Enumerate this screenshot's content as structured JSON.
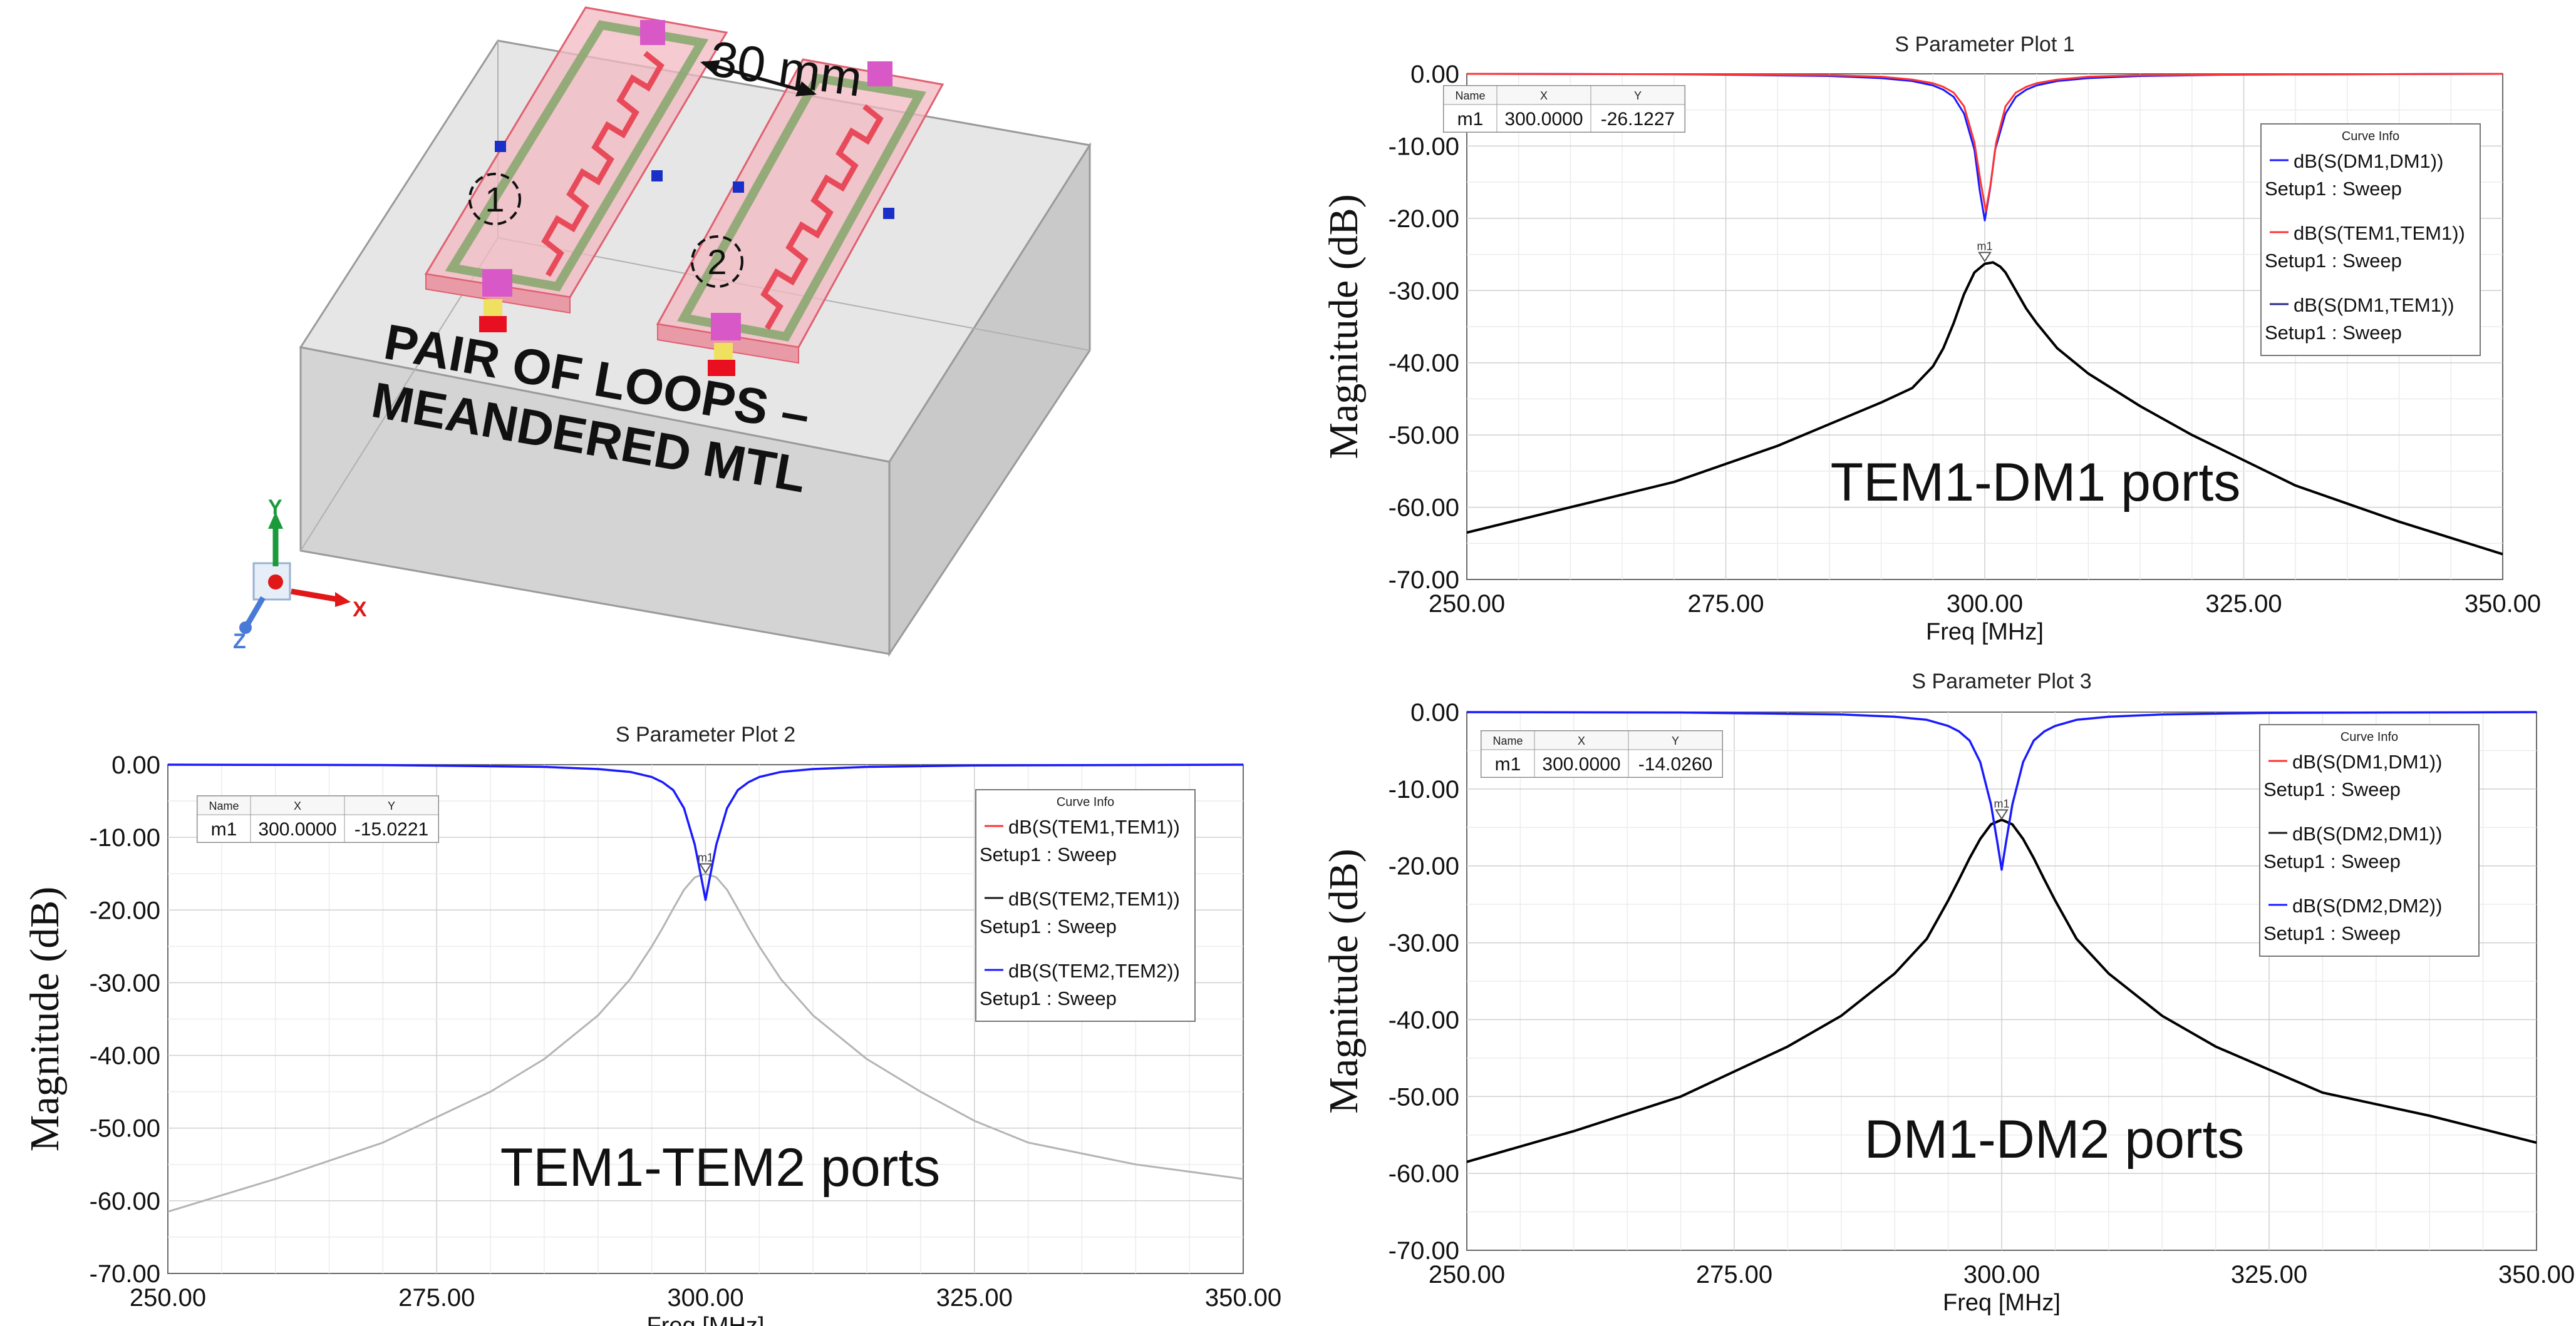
{
  "figure": {
    "model": {
      "spacing_label": "30 mm",
      "loop_markers": [
        "1",
        "2"
      ],
      "caption_lines": [
        "PAIR OF LOOPS –",
        "MEANDERED MTL"
      ],
      "axes": {
        "x": "X",
        "y": "Y",
        "z": "Z"
      },
      "colors": {
        "box": "#dcdcdc",
        "substrate": "#f2b8c0",
        "trace": "#e84a5a",
        "ground_ring": "#8aa870",
        "port": "#d858c8",
        "feed": "#e81020",
        "feed_pad": "#f0e060",
        "dot": "#1a2fc8"
      }
    }
  },
  "chart_data": [
    {
      "type": "line",
      "title": "S Parameter Plot 1",
      "xlabel": "Freq [MHz]",
      "ylabel": "Magnitude (dB)",
      "xlim": [
        250,
        350
      ],
      "ylim": [
        -70,
        0
      ],
      "x_ticks": [
        "250.00",
        "275.00",
        "300.00",
        "325.00",
        "350.00"
      ],
      "y_ticks": [
        "0.00",
        "-10.00",
        "-20.00",
        "-30.00",
        "-40.00",
        "-50.00",
        "-60.00",
        "-70.00"
      ],
      "grid": true,
      "annotation": "TEM1-DM1 ports",
      "marker": {
        "label": "m1",
        "x": 300.0,
        "y": -26.1227,
        "table": {
          "headers": [
            "Name",
            "X",
            "Y"
          ],
          "row": [
            "m1",
            "300.0000",
            "-26.1227"
          ]
        }
      },
      "legend": {
        "title": "Curve Info",
        "placement": "top-right",
        "entries": [
          {
            "label": "dB(S(DM1,DM1))",
            "setup": "Setup1 : Sweep",
            "color": "#1a1aff"
          },
          {
            "label": "dB(S(TEM1,TEM1))",
            "setup": "Setup1 : Sweep",
            "color": "#ff3333"
          },
          {
            "label": "dB(S(DM1,TEM1))",
            "setup": "Setup1 : Sweep",
            "color": "#2a2a8a"
          }
        ]
      },
      "series": [
        {
          "color": "#1a1aff",
          "width": 3,
          "x": [
            250,
            270,
            285,
            290,
            293,
            295,
            296,
            297,
            298,
            299,
            299.5,
            300,
            300.5,
            301,
            302,
            303,
            304,
            305,
            307,
            310,
            315,
            325,
            350
          ],
          "y": [
            0,
            -0.05,
            -0.3,
            -0.6,
            -1.0,
            -1.6,
            -2.2,
            -3.2,
            -5.5,
            -10.5,
            -16,
            -20.3,
            -16,
            -10.5,
            -5.5,
            -3.2,
            -2.2,
            -1.6,
            -1.0,
            -0.6,
            -0.3,
            -0.1,
            0
          ]
        },
        {
          "color": "#ff3333",
          "width": 3,
          "x": [
            250,
            270,
            285,
            290,
            293,
            295,
            296,
            297,
            298,
            299,
            299.6,
            300.1,
            300.6,
            301.1,
            302,
            303,
            304,
            305,
            307,
            310,
            315,
            325,
            350
          ],
          "y": [
            0,
            -0.05,
            -0.2,
            -0.4,
            -0.8,
            -1.3,
            -1.8,
            -2.6,
            -4.5,
            -9.5,
            -15,
            -19,
            -15,
            -9.5,
            -4.5,
            -2.6,
            -1.8,
            -1.3,
            -0.8,
            -0.4,
            -0.2,
            -0.1,
            0
          ]
        },
        {
          "color": "#000000",
          "width": 4,
          "x": [
            250,
            260,
            270,
            280,
            285,
            290,
            293,
            295,
            296,
            297,
            298,
            299,
            300,
            300.8,
            301.5,
            302,
            303,
            304,
            305,
            307,
            310,
            315,
            320,
            325,
            330,
            340,
            350
          ],
          "y": [
            -63.5,
            -60,
            -56.5,
            -51.5,
            -48.5,
            -45.5,
            -43.5,
            -40.5,
            -38,
            -34.5,
            -30.5,
            -27.5,
            -26.3,
            -26.1,
            -26.7,
            -27.5,
            -30,
            -32.5,
            -34.5,
            -38,
            -41.5,
            -46,
            -50,
            -53.5,
            -57,
            -62,
            -66.5
          ]
        }
      ]
    },
    {
      "type": "line",
      "title": "S Parameter Plot 2",
      "xlabel": "Freq [MHz]",
      "ylabel": "Magnitude (dB)",
      "xlim": [
        250,
        350
      ],
      "ylim": [
        -70,
        0
      ],
      "x_ticks": [
        "250.00",
        "275.00",
        "300.00",
        "325.00",
        "350.00"
      ],
      "y_ticks": [
        "0.00",
        "-10.00",
        "-20.00",
        "-30.00",
        "-40.00",
        "-50.00",
        "-60.00",
        "-70.00"
      ],
      "grid": true,
      "annotation": "TEM1-TEM2 ports",
      "marker": {
        "label": "m1",
        "x": 300.0,
        "y": -15.0221,
        "table": {
          "headers": [
            "Name",
            "X",
            "Y"
          ],
          "row": [
            "m1",
            "300.0000",
            "-15.0221"
          ]
        }
      },
      "legend": {
        "title": "Curve Info",
        "placement": "top-right",
        "entries": [
          {
            "label": "dB(S(TEM1,TEM1))",
            "setup": "Setup1 : Sweep",
            "color": "#ff3333"
          },
          {
            "label": "dB(S(TEM2,TEM1))",
            "setup": "Setup1 : Sweep",
            "color": "#1a1a1a"
          },
          {
            "label": "dB(S(TEM2,TEM2))",
            "setup": "Setup1 : Sweep",
            "color": "#1a1aff"
          }
        ]
      },
      "series": [
        {
          "color": "#b4b4b4",
          "width": 3,
          "x": [
            250,
            260,
            270,
            280,
            285,
            290,
            293,
            295,
            296,
            297,
            298,
            299,
            300,
            301,
            302,
            303,
            304,
            305,
            307,
            310,
            315,
            320,
            325,
            330,
            340,
            350
          ],
          "y": [
            -61.5,
            -57,
            -52,
            -45,
            -40.5,
            -34.5,
            -29.5,
            -25,
            -22.5,
            -19.8,
            -17.2,
            -15.5,
            -15.0,
            -15.5,
            -17.2,
            -19.8,
            -22.5,
            -25,
            -29.5,
            -34.5,
            -40.5,
            -45,
            -49,
            -52,
            -55,
            -57
          ]
        },
        {
          "color": "#1a1aff",
          "width": 3.5,
          "x": [
            250,
            270,
            285,
            290,
            293,
            295,
            296,
            297,
            298,
            299,
            299.6,
            300,
            300.4,
            301,
            302,
            303,
            304,
            305,
            307,
            310,
            315,
            325,
            350
          ],
          "y": [
            0,
            -0.05,
            -0.3,
            -0.6,
            -1.0,
            -1.7,
            -2.4,
            -3.5,
            -6,
            -11,
            -15.5,
            -18.6,
            -15.5,
            -11,
            -6,
            -3.5,
            -2.4,
            -1.7,
            -1.0,
            -0.6,
            -0.3,
            -0.1,
            0
          ]
        }
      ]
    },
    {
      "type": "line",
      "title": "S Parameter Plot 3",
      "xlabel": "Freq [MHz]",
      "ylabel": "Magnitude (dB)",
      "xlim": [
        250,
        350
      ],
      "ylim": [
        -70,
        0
      ],
      "x_ticks": [
        "250.00",
        "275.00",
        "300.00",
        "325.00",
        "350.00"
      ],
      "y_ticks": [
        "0.00",
        "-10.00",
        "-20.00",
        "-30.00",
        "-40.00",
        "-50.00",
        "-60.00",
        "-70.00"
      ],
      "grid": true,
      "annotation": "DM1-DM2 ports",
      "marker": {
        "label": "m1",
        "x": 300.0,
        "y": -14.026,
        "table": {
          "headers": [
            "Name",
            "X",
            "Y"
          ],
          "row": [
            "m1",
            "300.0000",
            "-14.0260"
          ]
        }
      },
      "legend": {
        "title": "Curve Info",
        "placement": "top-right",
        "entries": [
          {
            "label": "dB(S(DM1,DM1))",
            "setup": "Setup1 : Sweep",
            "color": "#ff3333"
          },
          {
            "label": "dB(S(DM2,DM1))",
            "setup": "Setup1 : Sweep",
            "color": "#1a1a1a"
          },
          {
            "label": "dB(S(DM2,DM2))",
            "setup": "Setup1 : Sweep",
            "color": "#1a1aff"
          }
        ]
      },
      "series": [
        {
          "color": "#000000",
          "width": 4,
          "x": [
            250,
            260,
            270,
            280,
            285,
            290,
            293,
            295,
            296,
            297,
            298,
            299,
            300,
            301,
            302,
            303,
            304,
            305,
            307,
            310,
            315,
            320,
            325,
            330,
            340,
            350
          ],
          "y": [
            -58.5,
            -54.5,
            -50,
            -43.5,
            -39.5,
            -34,
            -29.5,
            -24.5,
            -21.8,
            -19,
            -16.5,
            -14.6,
            -14.0,
            -14.6,
            -16.5,
            -19,
            -21.8,
            -24.5,
            -29.5,
            -34,
            -39.5,
            -43.5,
            -46.5,
            -49.5,
            -52.5,
            -56
          ]
        },
        {
          "color": "#1a1aff",
          "width": 3.5,
          "x": [
            250,
            270,
            285,
            290,
            293,
            295,
            296,
            297,
            298,
            299,
            299.6,
            300,
            300.4,
            301,
            302,
            303,
            304,
            305,
            307,
            310,
            315,
            325,
            350
          ],
          "y": [
            0,
            -0.05,
            -0.3,
            -0.6,
            -1.0,
            -1.8,
            -2.5,
            -3.7,
            -6.5,
            -12,
            -17,
            -20.5,
            -17,
            -12,
            -6.5,
            -3.7,
            -2.5,
            -1.8,
            -1.0,
            -0.6,
            -0.3,
            -0.1,
            0
          ]
        }
      ]
    }
  ]
}
